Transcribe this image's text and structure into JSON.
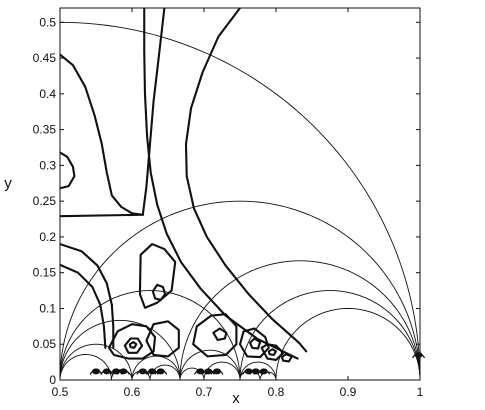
{
  "chart_data": {
    "type": "line",
    "title": "",
    "xlabel": "x",
    "ylabel": "y",
    "xlim": [
      0.5,
      1.0
    ],
    "ylim": [
      0.0,
      0.52
    ],
    "grid": false,
    "x_ticks": [
      {
        "value": 0.5,
        "label": "0.5"
      },
      {
        "value": 0.6,
        "label": "0.6"
      },
      {
        "value": 0.7,
        "label": "0.7"
      },
      {
        "value": 0.8,
        "label": "0.8"
      },
      {
        "value": 0.9,
        "label": "0.9"
      },
      {
        "value": 1.0,
        "label": "1"
      }
    ],
    "y_ticks": [
      {
        "value": 0.0,
        "label": "0"
      },
      {
        "value": 0.05,
        "label": "0.05"
      },
      {
        "value": 0.1,
        "label": "0.1"
      },
      {
        "value": 0.15,
        "label": "0.15"
      },
      {
        "value": 0.2,
        "label": "0.2"
      },
      {
        "value": 0.25,
        "label": "0.25"
      },
      {
        "value": 0.3,
        "label": "0.3"
      },
      {
        "value": 0.35,
        "label": "0.35"
      },
      {
        "value": 0.4,
        "label": "0.4"
      },
      {
        "value": 0.45,
        "label": "0.45"
      },
      {
        "value": 0.5,
        "label": "0.5"
      }
    ],
    "geodesic_arcs": [
      {
        "x1": 0.0,
        "x2": 1.0
      },
      {
        "x1": 0.5,
        "x2": 1.0
      },
      {
        "x1": 0.5,
        "x2": 0.75
      },
      {
        "x1": 0.5,
        "x2": 0.6667
      },
      {
        "x1": 0.6667,
        "x2": 1.0
      },
      {
        "x1": 0.75,
        "x2": 1.0
      },
      {
        "x1": 0.8,
        "x2": 1.0
      },
      {
        "x1": 0.5,
        "x2": 0.6
      },
      {
        "x1": 0.6,
        "x2": 0.6667
      },
      {
        "x1": 0.6667,
        "x2": 0.75
      },
      {
        "x1": 0.75,
        "x2": 0.8
      },
      {
        "x1": 0.5,
        "x2": 0.5714
      },
      {
        "x1": 0.5714,
        "x2": 0.6
      },
      {
        "x1": 0.6,
        "x2": 0.625
      },
      {
        "x1": 0.625,
        "x2": 0.6667
      },
      {
        "x1": 0.6667,
        "x2": 0.7
      },
      {
        "x1": 0.7,
        "x2": 0.75
      },
      {
        "x1": 0.75,
        "x2": 0.7778
      },
      {
        "x1": 0.7778,
        "x2": 0.8
      }
    ],
    "contour_lines": [
      {
        "name": "",
        "points": [
          [
            0.5,
            0.455
          ],
          [
            0.518,
            0.44
          ],
          [
            0.535,
            0.41
          ],
          [
            0.548,
            0.37
          ],
          [
            0.558,
            0.33
          ],
          [
            0.565,
            0.29
          ],
          [
            0.572,
            0.258
          ],
          [
            0.585,
            0.242
          ],
          [
            0.6,
            0.233
          ],
          [
            0.615,
            0.231
          ]
        ]
      },
      {
        "name": "",
        "points": [
          [
            0.615,
            0.231
          ],
          [
            0.5,
            0.229
          ]
        ]
      },
      {
        "name": "",
        "points": [
          [
            0.615,
            0.231
          ],
          [
            0.62,
            0.27
          ],
          [
            0.625,
            0.33
          ],
          [
            0.63,
            0.39
          ],
          [
            0.637,
            0.45
          ],
          [
            0.645,
            0.52
          ]
        ]
      },
      {
        "name": "",
        "points": [
          [
            0.5,
            0.318
          ],
          [
            0.51,
            0.312
          ],
          [
            0.518,
            0.298
          ],
          [
            0.52,
            0.285
          ],
          [
            0.512,
            0.271
          ],
          [
            0.5,
            0.268
          ]
        ]
      },
      {
        "name": "",
        "points": [
          [
            0.5,
            0.19
          ],
          [
            0.53,
            0.18
          ],
          [
            0.552,
            0.16
          ],
          [
            0.565,
            0.135
          ],
          [
            0.572,
            0.105
          ],
          [
            0.574,
            0.075
          ],
          [
            0.574,
            0.045
          ]
        ]
      },
      {
        "name": "",
        "points": [
          [
            0.5,
            0.161
          ],
          [
            0.525,
            0.15
          ],
          [
            0.545,
            0.13
          ],
          [
            0.556,
            0.105
          ],
          [
            0.561,
            0.075
          ],
          [
            0.563,
            0.045
          ]
        ]
      },
      {
        "name": "",
        "points": [
          [
            0.617,
            0.52
          ],
          [
            0.617,
            0.46
          ],
          [
            0.618,
            0.4
          ],
          [
            0.621,
            0.34
          ],
          [
            0.626,
            0.29
          ],
          [
            0.635,
            0.245
          ],
          [
            0.648,
            0.205
          ],
          [
            0.668,
            0.165
          ],
          [
            0.695,
            0.128
          ],
          [
            0.73,
            0.09
          ],
          [
            0.775,
            0.057
          ],
          [
            0.83,
            0.03
          ]
        ]
      },
      {
        "name": "",
        "points": [
          [
            0.75,
            0.52
          ],
          [
            0.72,
            0.48
          ],
          [
            0.698,
            0.43
          ],
          [
            0.682,
            0.38
          ],
          [
            0.675,
            0.33
          ],
          [
            0.676,
            0.285
          ],
          [
            0.686,
            0.24
          ],
          [
            0.704,
            0.2
          ],
          [
            0.73,
            0.16
          ],
          [
            0.762,
            0.12
          ],
          [
            0.795,
            0.085
          ],
          [
            0.832,
            0.052
          ],
          [
            0.842,
            0.04
          ]
        ]
      },
      {
        "name": "",
        "points": [
          [
            0.612,
            0.175
          ],
          [
            0.628,
            0.19
          ],
          [
            0.645,
            0.183
          ],
          [
            0.66,
            0.165
          ],
          [
            0.655,
            0.125
          ],
          [
            0.635,
            0.108
          ],
          [
            0.618,
            0.101
          ],
          [
            0.611,
            0.12
          ],
          [
            0.612,
            0.175
          ]
        ]
      },
      {
        "name": "",
        "points": [
          [
            0.635,
            0.133
          ],
          [
            0.643,
            0.13
          ],
          [
            0.646,
            0.12
          ],
          [
            0.64,
            0.112
          ],
          [
            0.632,
            0.114
          ],
          [
            0.629,
            0.124
          ],
          [
            0.635,
            0.133
          ]
        ]
      },
      {
        "name": "",
        "points": [
          [
            0.568,
            0.045
          ],
          [
            0.58,
            0.068
          ],
          [
            0.6,
            0.078
          ],
          [
            0.62,
            0.075
          ],
          [
            0.632,
            0.06
          ],
          [
            0.63,
            0.04
          ],
          [
            0.615,
            0.03
          ],
          [
            0.595,
            0.03
          ],
          [
            0.575,
            0.035
          ],
          [
            0.568,
            0.045
          ]
        ]
      },
      {
        "name": "",
        "points": [
          [
            0.59,
            0.048
          ],
          [
            0.598,
            0.058
          ],
          [
            0.608,
            0.058
          ],
          [
            0.614,
            0.048
          ],
          [
            0.607,
            0.038
          ],
          [
            0.595,
            0.038
          ],
          [
            0.59,
            0.048
          ]
        ]
      },
      {
        "name": "",
        "points": [
          [
            0.597,
            0.05
          ],
          [
            0.602,
            0.053
          ],
          [
            0.606,
            0.05
          ],
          [
            0.603,
            0.045
          ],
          [
            0.598,
            0.046
          ],
          [
            0.597,
            0.05
          ]
        ]
      },
      {
        "name": "",
        "points": [
          [
            0.62,
            0.055
          ],
          [
            0.63,
            0.078
          ],
          [
            0.65,
            0.082
          ],
          [
            0.665,
            0.07
          ],
          [
            0.665,
            0.045
          ],
          [
            0.65,
            0.033
          ],
          [
            0.63,
            0.035
          ],
          [
            0.62,
            0.055
          ]
        ]
      },
      {
        "name": "",
        "points": [
          [
            0.685,
            0.05
          ],
          [
            0.69,
            0.075
          ],
          [
            0.71,
            0.09
          ],
          [
            0.73,
            0.092
          ],
          [
            0.745,
            0.075
          ],
          [
            0.745,
            0.05
          ],
          [
            0.73,
            0.035
          ],
          [
            0.705,
            0.033
          ],
          [
            0.685,
            0.05
          ]
        ]
      },
      {
        "name": "",
        "points": [
          [
            0.713,
            0.066
          ],
          [
            0.722,
            0.072
          ],
          [
            0.731,
            0.066
          ],
          [
            0.729,
            0.058
          ],
          [
            0.719,
            0.056
          ],
          [
            0.713,
            0.066
          ]
        ]
      },
      {
        "name": "",
        "points": [
          [
            0.75,
            0.05
          ],
          [
            0.755,
            0.068
          ],
          [
            0.77,
            0.072
          ],
          [
            0.785,
            0.06
          ],
          [
            0.79,
            0.045
          ],
          [
            0.778,
            0.032
          ],
          [
            0.76,
            0.033
          ],
          [
            0.75,
            0.05
          ]
        ]
      },
      {
        "name": "",
        "points": [
          [
            0.764,
            0.052
          ],
          [
            0.77,
            0.058
          ],
          [
            0.778,
            0.053
          ],
          [
            0.775,
            0.044
          ],
          [
            0.767,
            0.045
          ],
          [
            0.764,
            0.052
          ]
        ]
      },
      {
        "name": "",
        "points": [
          [
            0.78,
            0.045
          ],
          [
            0.788,
            0.05
          ],
          [
            0.8,
            0.048
          ],
          [
            0.81,
            0.038
          ],
          [
            0.8,
            0.028
          ],
          [
            0.788,
            0.03
          ],
          [
            0.78,
            0.045
          ]
        ]
      },
      {
        "name": "",
        "points": [
          [
            0.79,
            0.04
          ],
          [
            0.795,
            0.043
          ],
          [
            0.8,
            0.04
          ],
          [
            0.797,
            0.035
          ],
          [
            0.791,
            0.036
          ],
          [
            0.79,
            0.04
          ]
        ]
      },
      {
        "name": "",
        "points": [
          [
            0.808,
            0.032
          ],
          [
            0.814,
            0.036
          ],
          [
            0.822,
            0.033
          ],
          [
            0.818,
            0.026
          ],
          [
            0.81,
            0.027
          ],
          [
            0.808,
            0.032
          ]
        ]
      }
    ],
    "cusp_clusters": [
      {
        "x": 0.55,
        "y": 0.012
      },
      {
        "x": 0.565,
        "y": 0.012
      },
      {
        "x": 0.578,
        "y": 0.012
      },
      {
        "x": 0.588,
        "y": 0.012
      },
      {
        "x": 0.615,
        "y": 0.012
      },
      {
        "x": 0.628,
        "y": 0.012
      },
      {
        "x": 0.64,
        "y": 0.012
      },
      {
        "x": 0.695,
        "y": 0.012
      },
      {
        "x": 0.706,
        "y": 0.012
      },
      {
        "x": 0.718,
        "y": 0.012
      },
      {
        "x": 0.762,
        "y": 0.012
      },
      {
        "x": 0.772,
        "y": 0.012
      },
      {
        "x": 0.783,
        "y": 0.012
      },
      {
        "x": 0.998,
        "y": 0.035
      }
    ]
  }
}
